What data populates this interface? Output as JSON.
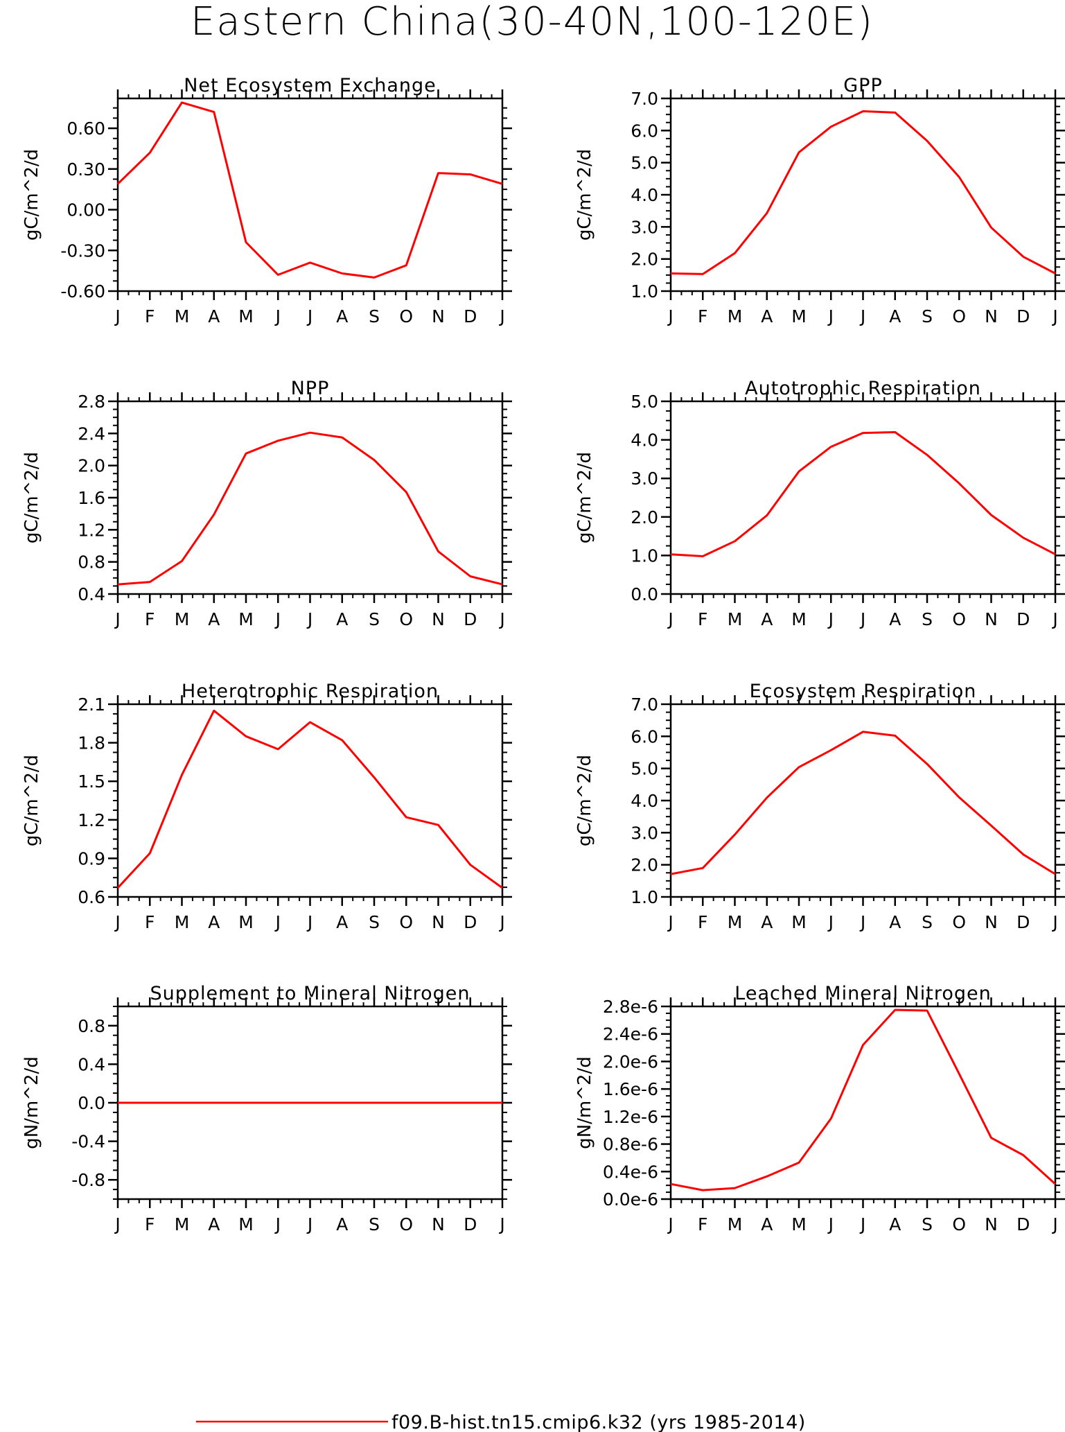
{
  "figure": {
    "title": "Eastern China(30-40N,100-120E)",
    "legend_label": "f09.B-hist.tn15.cmip6.k32 (yrs 1985-2014)",
    "series_color": "#ff0000"
  },
  "chart_data": [
    {
      "type": "line",
      "title": "Net Ecosystem Exchange",
      "ylabel": "gC/m^2/d",
      "x": [
        "J",
        "F",
        "M",
        "A",
        "M",
        "J",
        "J",
        "A",
        "S",
        "O",
        "N",
        "D",
        "J"
      ],
      "ylim": [
        -0.6,
        0.82
      ],
      "yticks": [
        -0.6,
        -0.3,
        0.0,
        0.3,
        0.6
      ],
      "ytick_labels": [
        "-0.60",
        "-0.30",
        "0.00",
        "0.30",
        "0.60"
      ],
      "series": [
        {
          "values": [
            0.19,
            0.42,
            0.79,
            0.72,
            -0.24,
            -0.48,
            -0.39,
            -0.47,
            -0.5,
            -0.41,
            0.27,
            0.26,
            0.19
          ]
        }
      ]
    },
    {
      "type": "line",
      "title": "GPP",
      "ylabel": "gC/m^2/d",
      "x": [
        "J",
        "F",
        "M",
        "A",
        "M",
        "J",
        "J",
        "A",
        "S",
        "O",
        "N",
        "D",
        "J"
      ],
      "ylim": [
        1.0,
        7.0
      ],
      "yticks": [
        1.0,
        2.0,
        3.0,
        4.0,
        5.0,
        6.0,
        7.0
      ],
      "ytick_labels": [
        "1.0",
        "2.0",
        "3.0",
        "4.0",
        "5.0",
        "6.0",
        "7.0"
      ],
      "series": [
        {
          "values": [
            1.55,
            1.53,
            2.18,
            3.43,
            5.32,
            6.12,
            6.6,
            6.56,
            5.68,
            4.55,
            2.98,
            2.07,
            1.55
          ]
        }
      ]
    },
    {
      "type": "line",
      "title": "NPP",
      "ylabel": "gC/m^2/d",
      "x": [
        "J",
        "F",
        "M",
        "A",
        "M",
        "J",
        "J",
        "A",
        "S",
        "O",
        "N",
        "D",
        "J"
      ],
      "ylim": [
        0.4,
        2.8
      ],
      "yticks": [
        0.4,
        0.8,
        1.2,
        1.6,
        2.0,
        2.4,
        2.8
      ],
      "ytick_labels": [
        "0.4",
        "0.8",
        "1.2",
        "1.6",
        "2.0",
        "2.4",
        "2.8"
      ],
      "series": [
        {
          "values": [
            0.52,
            0.55,
            0.81,
            1.39,
            2.15,
            2.31,
            2.41,
            2.35,
            2.07,
            1.67,
            0.93,
            0.62,
            0.52
          ]
        }
      ]
    },
    {
      "type": "line",
      "title": "Autotrophic Respiration",
      "ylabel": "gC/m^2/d",
      "x": [
        "J",
        "F",
        "M",
        "A",
        "M",
        "J",
        "J",
        "A",
        "S",
        "O",
        "N",
        "D",
        "J"
      ],
      "ylim": [
        0.0,
        5.0
      ],
      "yticks": [
        0.0,
        1.0,
        2.0,
        3.0,
        4.0,
        5.0
      ],
      "ytick_labels": [
        "0.0",
        "1.0",
        "2.0",
        "3.0",
        "4.0",
        "5.0"
      ],
      "series": [
        {
          "values": [
            1.03,
            0.98,
            1.37,
            2.04,
            3.18,
            3.82,
            4.18,
            4.2,
            3.61,
            2.87,
            2.05,
            1.46,
            1.03
          ]
        }
      ]
    },
    {
      "type": "line",
      "title": "Heterotrophic Respiration",
      "ylabel": "gC/m^2/d",
      "x": [
        "J",
        "F",
        "M",
        "A",
        "M",
        "J",
        "J",
        "A",
        "S",
        "O",
        "N",
        "D",
        "J"
      ],
      "ylim": [
        0.6,
        2.1
      ],
      "yticks": [
        0.6,
        0.9,
        1.2,
        1.5,
        1.8,
        2.1
      ],
      "ytick_labels": [
        "0.6",
        "0.9",
        "1.2",
        "1.5",
        "1.8",
        "2.1"
      ],
      "series": [
        {
          "values": [
            0.67,
            0.94,
            1.55,
            2.05,
            1.85,
            1.75,
            1.96,
            1.82,
            1.53,
            1.22,
            1.16,
            0.85,
            0.67
          ]
        }
      ]
    },
    {
      "type": "line",
      "title": "Ecosystem Respiration",
      "ylabel": "gC/m^2/d",
      "x": [
        "J",
        "F",
        "M",
        "A",
        "M",
        "J",
        "J",
        "A",
        "S",
        "O",
        "N",
        "D",
        "J"
      ],
      "ylim": [
        1.0,
        7.0
      ],
      "yticks": [
        1.0,
        2.0,
        3.0,
        4.0,
        5.0,
        6.0,
        7.0
      ],
      "ytick_labels": [
        "1.0",
        "2.0",
        "3.0",
        "4.0",
        "5.0",
        "6.0",
        "7.0"
      ],
      "series": [
        {
          "values": [
            1.71,
            1.9,
            2.94,
            4.09,
            5.04,
            5.57,
            6.14,
            6.02,
            5.14,
            4.1,
            3.22,
            2.32,
            1.71
          ]
        }
      ]
    },
    {
      "type": "line",
      "title": "Supplement to Mineral Nitrogen",
      "ylabel": "gN/m^2/d",
      "x": [
        "J",
        "F",
        "M",
        "A",
        "M",
        "J",
        "J",
        "A",
        "S",
        "O",
        "N",
        "D",
        "J"
      ],
      "ylim": [
        -1.0,
        1.0
      ],
      "yticks": [
        -0.8,
        -0.4,
        0.0,
        0.4,
        0.8
      ],
      "ytick_labels": [
        "-0.8",
        "-0.4",
        "0.0",
        "0.4",
        "0.8"
      ],
      "series": [
        {
          "values": [
            0,
            0,
            0,
            0,
            0,
            0,
            0,
            0,
            0,
            0,
            0,
            0,
            0
          ]
        }
      ]
    },
    {
      "type": "line",
      "title": "Leached Mineral Nitrogen",
      "ylabel": "gN/m^2/d",
      "x": [
        "J",
        "F",
        "M",
        "A",
        "M",
        "J",
        "J",
        "A",
        "S",
        "O",
        "N",
        "D",
        "J"
      ],
      "ylim": [
        0.0,
        2.8e-06
      ],
      "yticks": [
        0.0,
        4e-07,
        8e-07,
        1.2e-06,
        1.6e-06,
        2e-06,
        2.4e-06,
        2.8e-06
      ],
      "ytick_labels": [
        "0.0e-6",
        "0.4e-6",
        "0.8e-6",
        "1.2e-6",
        "1.6e-6",
        "2.0e-6",
        "2.4e-6",
        "2.8e-6"
      ],
      "series": [
        {
          "values": [
            2.2e-07,
            1.3e-07,
            1.6e-07,
            3.3e-07,
            5.3e-07,
            1.17e-06,
            2.24e-06,
            2.75e-06,
            2.74e-06,
            1.82e-06,
            8.9e-07,
            6.4e-07,
            2.2e-07
          ]
        }
      ]
    }
  ]
}
